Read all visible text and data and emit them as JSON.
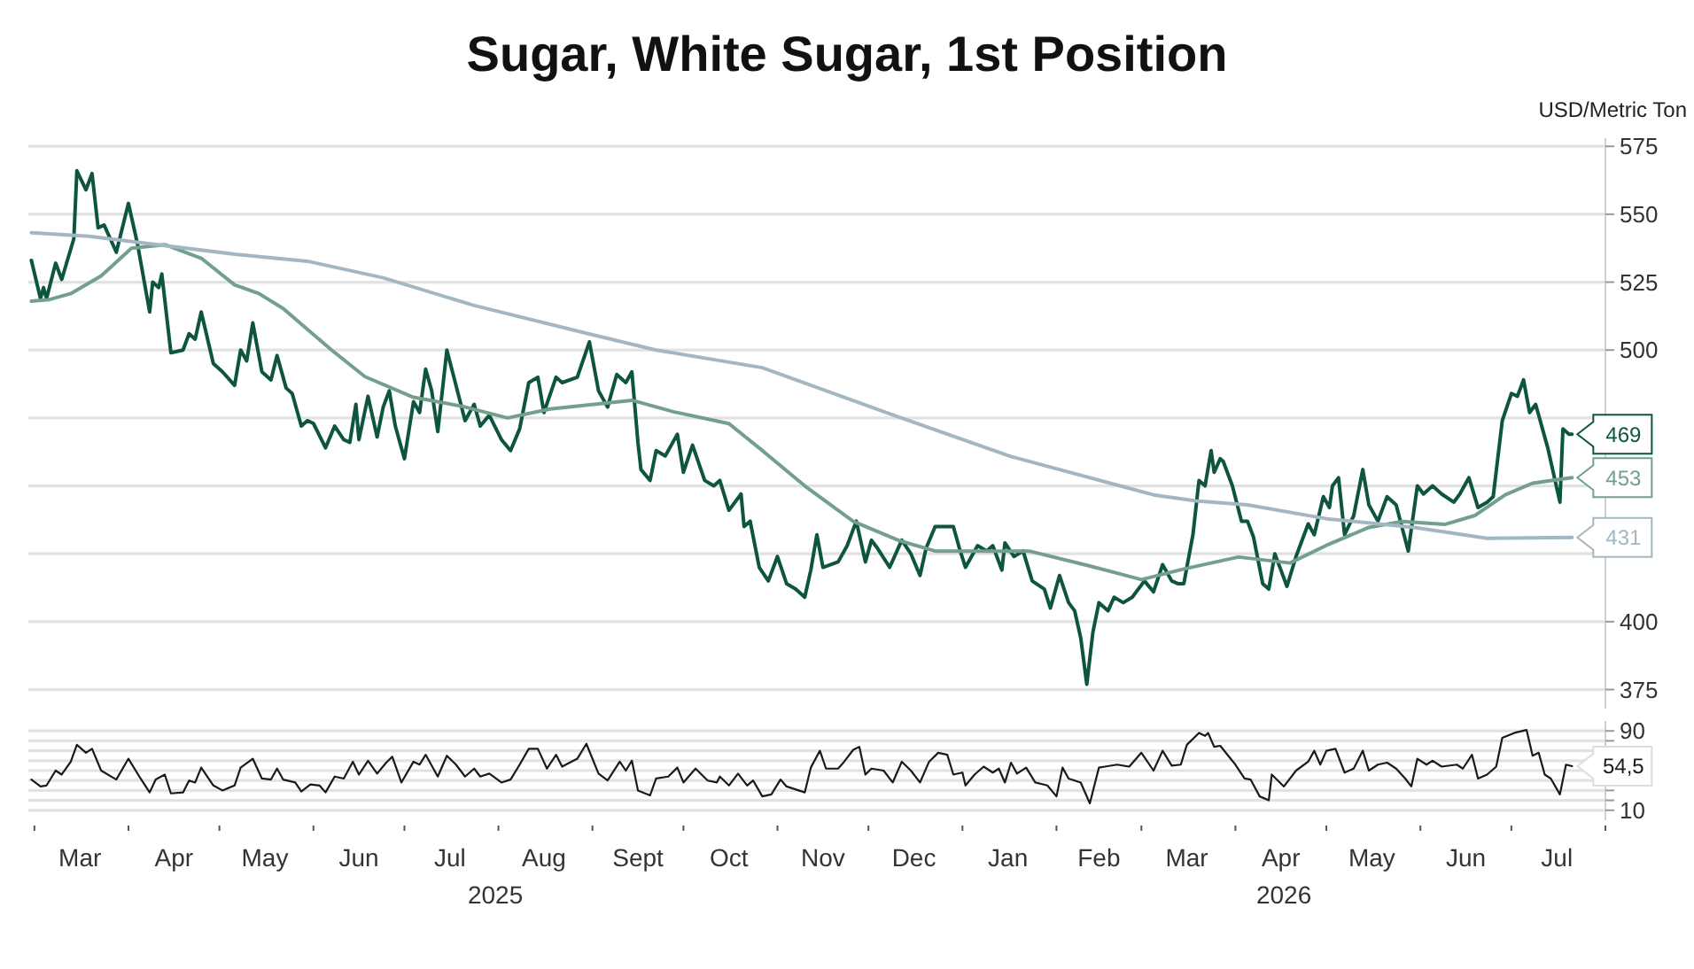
{
  "chart_data": [
    {
      "type": "line",
      "title": "Sugar, White Sugar, 1st Position",
      "ylabel": "USD/Metric Ton",
      "xlim": [
        "2025-02-27",
        "2026-08-01"
      ],
      "ylim": [
        368,
        578
      ],
      "yticks": [
        375,
        400,
        {
          "value": 425,
          "label": null
        },
        {
          "value": 450,
          "label": null
        },
        {
          "value": 475,
          "label": null
        },
        500,
        525,
        550,
        575
      ],
      "grid": "y",
      "tick_labels": "y",
      "series": [
        {
          "color": "#0d5540",
          "x": [
            "2025-02-28",
            "2025-03-03",
            "2025-03-04",
            "2025-03-05",
            "2025-03-08",
            "2025-03-10",
            "2025-03-14",
            "2025-03-15",
            "2025-03-18",
            "2025-03-20",
            "2025-03-22",
            "2025-03-24",
            "2025-03-28",
            "2025-04-01",
            "2025-04-04",
            "2025-04-08",
            "2025-04-09",
            "2025-04-11",
            "2025-04-12",
            "2025-04-15",
            "2025-04-19",
            "2025-04-21",
            "2025-04-23",
            "2025-04-25",
            "2025-04-29",
            "2025-05-02",
            "2025-05-06",
            "2025-05-08",
            "2025-05-10",
            "2025-05-12",
            "2025-05-15",
            "2025-05-18",
            "2025-05-20",
            "2025-05-23",
            "2025-05-25",
            "2025-05-28",
            "2025-05-30",
            "2025-06-01",
            "2025-06-05",
            "2025-06-08",
            "2025-06-11",
            "2025-06-13",
            "2025-06-15",
            "2025-06-16",
            "2025-06-19",
            "2025-06-22",
            "2025-06-24",
            "2025-06-26",
            "2025-06-28",
            "2025-07-01",
            "2025-07-04",
            "2025-07-06",
            "2025-07-08",
            "2025-07-10",
            "2025-07-12",
            "2025-07-15",
            "2025-07-18",
            "2025-07-21",
            "2025-07-24",
            "2025-07-26",
            "2025-07-29",
            "2025-08-02",
            "2025-08-05",
            "2025-08-08",
            "2025-08-11",
            "2025-08-14",
            "2025-08-16",
            "2025-08-20",
            "2025-08-22",
            "2025-08-27",
            "2025-08-31",
            "2025-09-03",
            "2025-09-06",
            "2025-09-09",
            "2025-09-12",
            "2025-09-14",
            "2025-09-16",
            "2025-09-17",
            "2025-09-20",
            "2025-09-22",
            "2025-09-25",
            "2025-09-29",
            "2025-10-01",
            "2025-10-04",
            "2025-10-08",
            "2025-10-11",
            "2025-10-13",
            "2025-10-16",
            "2025-10-20",
            "2025-10-21",
            "2025-10-23",
            "2025-10-26",
            "2025-10-29",
            "2025-11-01",
            "2025-11-04",
            "2025-11-07",
            "2025-11-10",
            "2025-11-12",
            "2025-11-14",
            "2025-11-16",
            "2025-11-21",
            "2025-11-24",
            "2025-11-27",
            "2025-11-30",
            "2025-12-02",
            "2025-12-04",
            "2025-12-08",
            "2025-12-12",
            "2025-12-15",
            "2025-12-18",
            "2025-12-20",
            "2025-12-23",
            "2025-12-29",
            "2025-12-31",
            "2026-01-02",
            "2026-01-06",
            "2026-01-09",
            "2026-01-11",
            "2026-01-14",
            "2026-01-15",
            "2026-01-18",
            "2026-01-21",
            "2026-01-24",
            "2026-01-28",
            "2026-01-30",
            "2026-02-02",
            "2026-02-05",
            "2026-02-07",
            "2026-02-09",
            "2026-02-11",
            "2026-02-13",
            "2026-02-15",
            "2026-02-18",
            "2026-02-20",
            "2026-02-23",
            "2026-02-26",
            "2026-03-02",
            "2026-03-05",
            "2026-03-08",
            "2026-03-11",
            "2026-03-13",
            "2026-03-15",
            "2026-03-18",
            "2026-03-20",
            "2026-03-22",
            "2026-03-24",
            "2026-03-25",
            "2026-03-27",
            "2026-03-28",
            "2026-03-31",
            "2026-04-03",
            "2026-04-05",
            "2026-04-07",
            "2026-04-10",
            "2026-04-12",
            "2026-04-14",
            "2026-04-15",
            "2026-04-18",
            "2026-04-21",
            "2026-04-25",
            "2026-04-27",
            "2026-04-30",
            "2026-05-02",
            "2026-05-03",
            "2026-05-05",
            "2026-05-07",
            "2026-05-10",
            "2026-05-13",
            "2026-05-15",
            "2026-05-18",
            "2026-05-21",
            "2026-05-24",
            "2026-05-28",
            "2026-05-31",
            "2026-06-02",
            "2026-06-05",
            "2026-06-08",
            "2026-06-12",
            "2026-06-14",
            "2026-06-17",
            "2026-06-20",
            "2026-06-23",
            "2026-06-25",
            "2026-06-28",
            "2026-07-01",
            "2026-07-03",
            "2026-07-05",
            "2026-07-07",
            "2026-07-09",
            "2026-07-13",
            "2026-07-17",
            "2026-07-18",
            "2026-07-20",
            "2026-07-21"
          ],
          "values": [
            533,
            519,
            523,
            519,
            532,
            526,
            541,
            566,
            559,
            565,
            545,
            546,
            536,
            554,
            539,
            514,
            525,
            523,
            528,
            499,
            500,
            506,
            504,
            514,
            495,
            492,
            487,
            500,
            496,
            510,
            492,
            489,
            498,
            486,
            484,
            472,
            474,
            473,
            464,
            472,
            467,
            466,
            480,
            467,
            483,
            468,
            479,
            485,
            472,
            460,
            481,
            477,
            493,
            485,
            470,
            500,
            487,
            474,
            480,
            472,
            476,
            467,
            463,
            471,
            488,
            490,
            477,
            490,
            488,
            490,
            503,
            485,
            479,
            491,
            488,
            492,
            466,
            456,
            452,
            463,
            461,
            469,
            455,
            465,
            452,
            450,
            452,
            441,
            447,
            435,
            437,
            420,
            415,
            424,
            414,
            412,
            409,
            419,
            432,
            420,
            422,
            428,
            437,
            422,
            430,
            427,
            420,
            430,
            425,
            417,
            427,
            435,
            435,
            427,
            420,
            428,
            426,
            428,
            419,
            429,
            424,
            426,
            415,
            412,
            405,
            417,
            407,
            404,
            394,
            377,
            396,
            407,
            404,
            409,
            407,
            409,
            415,
            411,
            421,
            415,
            414,
            414,
            432,
            452,
            450,
            463,
            455,
            460,
            459,
            450,
            437,
            437,
            431,
            414,
            412,
            425,
            422,
            413,
            424,
            436,
            432,
            446,
            442,
            450,
            453,
            432,
            439,
            456,
            443,
            437,
            446,
            443,
            426,
            450,
            447,
            450,
            447,
            444,
            447,
            453,
            442,
            444,
            446,
            474,
            484,
            483,
            489,
            477,
            480,
            464,
            444,
            471,
            469,
            469
          ],
          "value_labels": [
            null,
            null,
            null,
            null,
            null,
            null,
            null,
            null,
            null,
            null,
            null,
            null,
            null,
            null,
            null,
            null,
            null,
            null,
            null,
            null,
            null,
            null,
            null,
            null,
            null,
            null,
            null,
            null,
            null,
            null,
            null,
            null,
            null,
            null,
            null,
            null,
            null,
            null,
            null,
            null,
            null,
            null,
            null,
            null,
            null,
            null,
            null,
            null,
            null,
            null,
            null,
            null,
            null,
            null,
            null,
            null,
            null,
            null,
            null,
            null,
            null,
            null,
            null,
            null,
            null,
            null,
            null,
            null,
            null,
            null,
            null,
            null,
            null,
            null,
            null,
            null,
            null,
            null,
            null,
            null,
            null,
            null,
            null,
            null,
            null,
            null,
            null,
            null,
            null,
            null,
            null,
            null,
            null,
            null,
            null,
            null,
            null,
            null,
            null,
            null,
            null,
            null,
            null,
            null,
            null,
            null,
            null,
            null,
            null,
            null,
            null,
            null,
            null,
            null,
            null,
            null,
            null,
            null,
            null,
            null,
            null,
            null,
            null,
            null,
            null,
            null,
            null,
            null,
            null,
            null,
            null,
            null,
            null,
            null,
            null,
            null,
            null,
            null,
            null,
            null,
            null,
            null,
            null,
            null,
            null,
            null,
            null,
            null,
            null,
            null,
            null,
            null,
            null,
            null,
            null,
            null,
            null,
            null,
            null,
            null,
            null,
            null,
            null,
            null,
            null,
            null,
            null,
            null,
            null,
            null,
            null,
            null,
            null,
            null,
            null,
            null,
            null,
            null,
            null,
            null,
            null,
            null,
            null,
            null,
            null,
            null,
            null,
            null,
            null,
            null,
            null,
            null,
            null,
            "469"
          ]
        },
        {
          "color": "#73a08a",
          "x": [
            "2025-02-28",
            "2025-03-06",
            "2025-03-13",
            "2025-03-23",
            "2025-04-02",
            "2025-04-13",
            "2025-04-25",
            "2025-05-06",
            "2025-05-14",
            "2025-05-22",
            "2025-06-07",
            "2025-06-18",
            "2025-07-04",
            "2025-07-20",
            "2025-08-04",
            "2025-08-18",
            "2025-09-05",
            "2025-09-14",
            "2025-09-28",
            "2025-10-16",
            "2025-10-27",
            "2025-11-10",
            "2025-11-26",
            "2025-12-11",
            "2025-12-23",
            "2026-01-23",
            "2026-02-12",
            "2026-03-01",
            "2026-03-15",
            "2026-04-02",
            "2026-04-19",
            "2026-05-01",
            "2026-05-15",
            "2026-05-26",
            "2026-06-09",
            "2026-06-19",
            "2026-06-29",
            "2026-07-08",
            "2026-07-21"
          ],
          "values": [
            518,
            518.6,
            520.8,
            527.3,
            537.5,
            538.8,
            533.8,
            524,
            520.8,
            515.3,
            500,
            490.2,
            482.6,
            479.3,
            475,
            478.3,
            480.4,
            481.5,
            477.2,
            472.9,
            463,
            450,
            436.9,
            429.9,
            426,
            426,
            420.5,
            415.5,
            419.4,
            423.8,
            421.6,
            428.1,
            434.7,
            436.9,
            435.8,
            439.1,
            446.7,
            451,
            453
          ],
          "value_labels": [
            null,
            null,
            null,
            null,
            null,
            null,
            null,
            null,
            null,
            null,
            null,
            null,
            null,
            null,
            null,
            null,
            null,
            null,
            null,
            null,
            null,
            null,
            null,
            null,
            null,
            null,
            null,
            null,
            null,
            null,
            null,
            null,
            null,
            null,
            null,
            null,
            null,
            null,
            "453"
          ]
        },
        {
          "color": "#a3b7c3",
          "x": [
            "2025-02-28",
            "2025-03-19",
            "2025-04-07",
            "2025-05-06",
            "2025-05-30",
            "2025-06-24",
            "2025-07-24",
            "2025-08-30",
            "2025-09-22",
            "2025-10-27",
            "2025-12-09",
            "2026-01-17",
            "2026-03-05",
            "2026-03-19",
            "2026-04-05",
            "2026-05-01",
            "2026-05-30",
            "2026-06-23",
            "2026-07-21"
          ],
          "values": [
            543.2,
            541.9,
            539.3,
            535.3,
            532.7,
            526.6,
            516.4,
            506.2,
            500,
            493.5,
            476.1,
            460.8,
            446.7,
            444.5,
            443,
            437.9,
            434.7,
            430.7,
            431
          ],
          "value_labels": [
            null,
            null,
            null,
            null,
            null,
            null,
            null,
            null,
            null,
            null,
            null,
            null,
            null,
            null,
            null,
            null,
            null,
            null,
            "431"
          ]
        }
      ]
    },
    {
      "type": "line",
      "xlim": [
        "2025-02-27",
        "2026-08-01"
      ],
      "ylim": [
        0,
        100
      ],
      "yticks": [
        {
          "value": 10,
          "label": "10"
        },
        {
          "value": 20,
          "label": null
        },
        {
          "value": 30,
          "label": null
        },
        {
          "value": 40,
          "label": null
        },
        {
          "value": 50,
          "label": null
        },
        {
          "value": 60,
          "label": null
        },
        {
          "value": 70,
          "label": null
        },
        {
          "value": 80,
          "label": null
        },
        {
          "value": 90,
          "label": "90"
        }
      ],
      "grid": "y",
      "xticks": [
        {
          "value": "2025-03-01",
          "label": null
        },
        {
          "value": "2025-03-16",
          "label": "Mar"
        },
        {
          "value": "2025-04-01",
          "label": null
        },
        {
          "value": "2025-04-16",
          "label": "Apr"
        },
        {
          "value": "2025-05-01",
          "label": null
        },
        {
          "value": "2025-05-16",
          "label": "May"
        },
        {
          "value": "2025-06-01",
          "label": null
        },
        {
          "value": "2025-06-16",
          "label": "Jun"
        },
        {
          "value": "2025-07-01",
          "label": null
        },
        {
          "value": "2025-07-16",
          "label": "Jul"
        },
        {
          "value": "2025-08-01",
          "label": null
        },
        {
          "value": "2025-08-16",
          "label": "Aug"
        },
        {
          "value": "2025-09-01",
          "label": null
        },
        {
          "value": "2025-09-16",
          "label": "Sept"
        },
        {
          "value": "2025-10-01",
          "label": null
        },
        {
          "value": "2025-10-16",
          "label": "Oct"
        },
        {
          "value": "2025-11-01",
          "label": null
        },
        {
          "value": "2025-11-16",
          "label": "Nov"
        },
        {
          "value": "2025-12-01",
          "label": null
        },
        {
          "value": "2025-12-16",
          "label": "Dec"
        },
        {
          "value": "2026-01-01",
          "label": null
        },
        {
          "value": "2026-01-16",
          "label": "Jan"
        },
        {
          "value": "2026-02-01",
          "label": null
        },
        {
          "value": "2026-02-15",
          "label": "Feb"
        },
        {
          "value": "2026-03-01",
          "label": null
        },
        {
          "value": "2026-03-16",
          "label": "Mar"
        },
        {
          "value": "2026-04-01",
          "label": null
        },
        {
          "value": "2026-04-16",
          "label": "Apr"
        },
        {
          "value": "2026-05-01",
          "label": null
        },
        {
          "value": "2026-05-16",
          "label": "May"
        },
        {
          "value": "2026-06-01",
          "label": null
        },
        {
          "value": "2026-06-16",
          "label": "Jun"
        },
        {
          "value": "2026-07-01",
          "label": null
        },
        {
          "value": "2026-07-16",
          "label": "Jul"
        },
        {
          "value": "2026-08-01",
          "label": null
        }
      ],
      "annotations": [
        "2025",
        "2026"
      ],
      "series": [
        {
          "color": "#1a1a1a",
          "x": [
            "2025-02-28",
            "2025-03-03",
            "2025-03-05",
            "2025-03-08",
            "2025-03-10",
            "2025-03-13",
            "2025-03-15",
            "2025-03-18",
            "2025-03-20",
            "2025-03-23",
            "2025-03-28",
            "2025-04-01",
            "2025-04-05",
            "2025-04-08",
            "2025-04-10",
            "2025-04-13",
            "2025-04-15",
            "2025-04-19",
            "2025-04-21",
            "2025-04-23",
            "2025-04-25",
            "2025-04-29",
            "2025-05-02",
            "2025-05-06",
            "2025-05-08",
            "2025-05-12",
            "2025-05-15",
            "2025-05-18",
            "2025-05-20",
            "2025-05-22",
            "2025-05-26",
            "2025-05-28",
            "2025-05-31",
            "2025-06-03",
            "2025-06-05",
            "2025-06-08",
            "2025-06-11",
            "2025-06-14",
            "2025-06-16",
            "2025-06-19",
            "2025-06-22",
            "2025-06-25",
            "2025-06-27",
            "2025-06-30",
            "2025-07-04",
            "2025-07-06",
            "2025-07-08",
            "2025-07-12",
            "2025-07-15",
            "2025-07-18",
            "2025-07-21",
            "2025-07-24",
            "2025-07-26",
            "2025-07-29",
            "2025-08-02",
            "2025-08-05",
            "2025-08-08",
            "2025-08-11",
            "2025-08-14",
            "2025-08-17",
            "2025-08-20",
            "2025-08-22",
            "2025-08-27",
            "2025-08-30",
            "2025-09-03",
            "2025-09-06",
            "2025-09-10",
            "2025-09-12",
            "2025-09-14",
            "2025-09-16",
            "2025-09-20",
            "2025-09-22",
            "2025-09-26",
            "2025-09-29",
            "2025-10-01",
            "2025-10-05",
            "2025-10-09",
            "2025-10-12",
            "2025-10-13",
            "2025-10-16",
            "2025-10-19",
            "2025-10-22",
            "2025-10-24",
            "2025-10-27",
            "2025-10-30",
            "2025-11-02",
            "2025-11-04",
            "2025-11-10",
            "2025-11-12",
            "2025-11-15",
            "2025-11-17",
            "2025-11-21",
            "2025-11-23",
            "2025-11-26",
            "2025-11-28",
            "2025-11-30",
            "2025-12-02",
            "2025-12-06",
            "2025-12-09",
            "2025-12-12",
            "2025-12-15",
            "2025-12-18",
            "2025-12-21",
            "2025-12-24",
            "2025-12-27",
            "2025-12-29",
            "2026-01-01",
            "2026-01-02",
            "2026-01-05",
            "2026-01-08",
            "2026-01-11",
            "2026-01-13",
            "2026-01-15",
            "2026-01-17",
            "2026-01-19",
            "2026-01-22",
            "2026-01-25",
            "2026-01-29",
            "2026-02-01",
            "2026-02-03",
            "2026-02-05",
            "2026-02-09",
            "2026-02-12",
            "2026-02-15",
            "2026-02-17",
            "2026-02-21",
            "2026-02-25",
            "2026-03-01",
            "2026-03-05",
            "2026-03-08",
            "2026-03-11",
            "2026-03-14",
            "2026-03-16",
            "2026-03-20",
            "2026-03-22",
            "2026-03-23",
            "2026-03-25",
            "2026-03-27",
            "2026-04-01",
            "2026-04-04",
            "2026-04-06",
            "2026-04-09",
            "2026-04-12",
            "2026-04-13",
            "2026-04-17",
            "2026-04-21",
            "2026-04-25",
            "2026-04-27",
            "2026-04-29",
            "2026-05-01",
            "2026-05-04",
            "2026-05-07",
            "2026-05-10",
            "2026-05-13",
            "2026-05-15",
            "2026-05-18",
            "2026-05-21",
            "2026-05-24",
            "2026-05-27",
            "2026-05-29",
            "2026-05-31",
            "2026-06-03",
            "2026-06-05",
            "2026-06-08",
            "2026-06-13",
            "2026-06-15",
            "2026-06-18",
            "2026-06-20",
            "2026-06-23",
            "2026-06-26",
            "2026-06-28",
            "2026-07-02",
            "2026-07-06",
            "2026-07-08",
            "2026-07-10",
            "2026-07-12",
            "2026-07-14",
            "2026-07-17",
            "2026-07-19",
            "2026-07-21"
          ],
          "values": [
            41,
            34,
            35,
            50,
            46,
            59,
            76,
            68,
            72,
            50,
            41,
            62,
            42,
            28,
            41,
            46,
            27,
            28,
            40,
            38,
            53,
            35,
            30,
            35,
            53,
            62,
            42,
            41,
            52,
            41,
            38,
            29,
            36,
            35,
            28,
            44,
            42,
            59,
            46,
            60,
            47,
            58,
            64,
            38,
            59,
            56,
            66,
            44,
            65,
            56,
            44,
            52,
            44,
            47,
            38,
            41,
            56,
            72,
            72,
            52,
            66,
            54,
            62,
            77,
            47,
            40,
            59,
            50,
            60,
            30,
            25,
            42,
            44,
            53,
            38,
            52,
            40,
            38,
            44,
            35,
            47,
            35,
            40,
            24,
            26,
            41,
            34,
            28,
            53,
            70,
            52,
            52,
            59,
            71,
            74,
            46,
            52,
            50,
            38,
            59,
            50,
            38,
            59,
            68,
            66,
            46,
            48,
            35,
            46,
            54,
            48,
            52,
            38,
            58,
            47,
            53,
            38,
            35,
            24,
            53,
            42,
            38,
            17,
            53,
            54,
            56,
            54,
            68,
            50,
            70,
            55,
            56,
            76,
            88,
            85,
            88,
            74,
            75,
            56,
            42,
            41,
            24,
            20,
            46,
            34,
            50,
            59,
            70,
            56,
            70,
            72,
            48,
            52,
            70,
            50,
            56,
            58,
            52,
            42,
            34,
            62,
            56,
            60,
            54,
            56,
            52,
            66,
            42,
            46,
            54,
            83,
            88,
            91,
            65,
            68,
            46,
            42,
            26,
            56,
            54.5
          ],
          "value_labels": [
            null,
            null,
            null,
            null,
            null,
            null,
            null,
            null,
            null,
            null,
            null,
            null,
            null,
            null,
            null,
            null,
            null,
            null,
            null,
            null,
            null,
            null,
            null,
            null,
            null,
            null,
            null,
            null,
            null,
            null,
            null,
            null,
            null,
            null,
            null,
            null,
            null,
            null,
            null,
            null,
            null,
            null,
            null,
            null,
            null,
            null,
            null,
            null,
            null,
            null,
            null,
            null,
            null,
            null,
            null,
            null,
            null,
            null,
            null,
            null,
            null,
            null,
            null,
            null,
            null,
            null,
            null,
            null,
            null,
            null,
            null,
            null,
            null,
            null,
            null,
            null,
            null,
            null,
            null,
            null,
            null,
            null,
            null,
            null,
            null,
            null,
            null,
            null,
            null,
            null,
            null,
            null,
            null,
            null,
            null,
            null,
            null,
            null,
            null,
            null,
            null,
            null,
            null,
            null,
            null,
            null,
            null,
            null,
            null,
            null,
            null,
            null,
            null,
            null,
            null,
            null,
            null,
            null,
            null,
            null,
            null,
            null,
            null,
            null,
            null,
            null,
            null,
            null,
            null,
            null,
            null,
            null,
            null,
            null,
            null,
            null,
            null,
            null,
            null,
            null,
            null,
            null,
            null,
            null,
            null,
            null,
            null,
            null,
            null,
            null,
            null,
            null,
            null,
            null,
            null,
            null,
            null,
            null,
            null,
            null,
            null,
            null,
            null,
            null,
            null,
            null,
            null,
            null,
            null,
            null,
            null,
            null,
            null,
            null,
            null,
            null,
            null,
            null,
            null,
            "54,5"
          ]
        }
      ]
    }
  ]
}
